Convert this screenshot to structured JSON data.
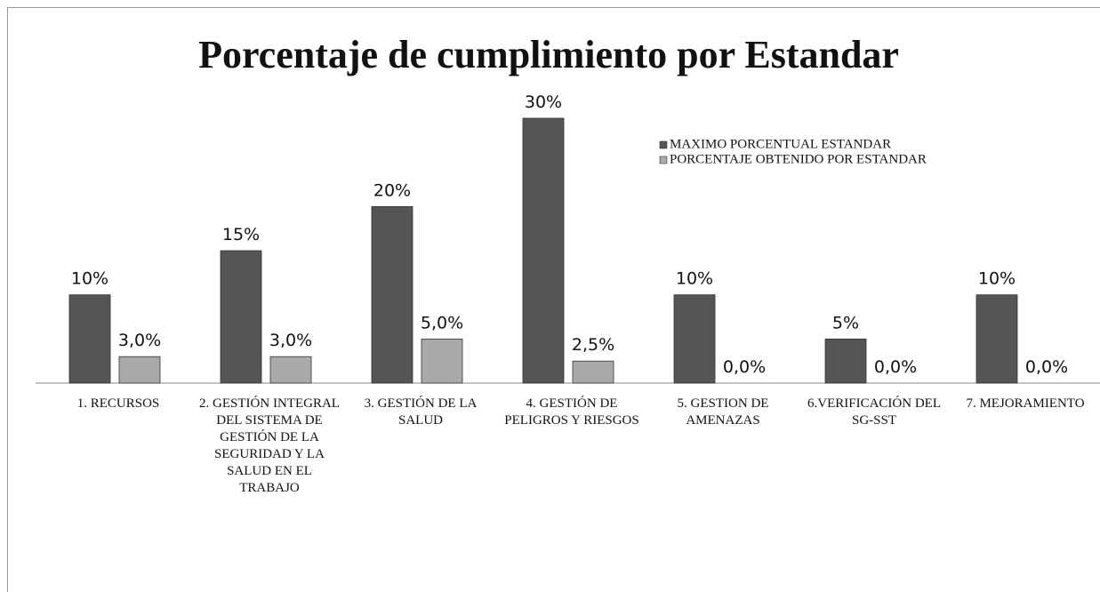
{
  "chart_data": {
    "type": "bar",
    "title": "Porcentaje de cumplimiento por Estandar",
    "categories": [
      "1. RECURSOS",
      "2. GESTIÓN INTEGRAL DEL SISTEMA DE GESTIÓN DE LA SEGURIDAD Y LA SALUD EN EL TRABAJO",
      "3. GESTIÓN DE LA SALUD",
      "4. GESTIÓN DE PELIGROS Y RIESGOS",
      "5. GESTION DE AMENAZAS",
      "6.VERIFICACIÓN DEL SG-SST",
      "7. MEJORAMIENTO"
    ],
    "series": [
      {
        "name": "MAXIMO PORCENTUAL ESTANDAR",
        "color": "#555555",
        "values": [
          10,
          15,
          20,
          30,
          10,
          5,
          10
        ],
        "value_labels": [
          "10%",
          "15%",
          "20%",
          "30%",
          "10%",
          "5%",
          "10%"
        ]
      },
      {
        "name": "PORCENTAJE OBTENIDO POR ESTANDAR",
        "color": "#a9a9a9",
        "values": [
          3,
          3,
          5,
          2.5,
          0,
          0,
          0
        ],
        "value_labels": [
          "3,0%",
          "3,0%",
          "5,0%",
          "2,5%",
          "0,0%",
          "0,0%",
          "0,0%"
        ]
      }
    ],
    "legend": "top-right"
  }
}
